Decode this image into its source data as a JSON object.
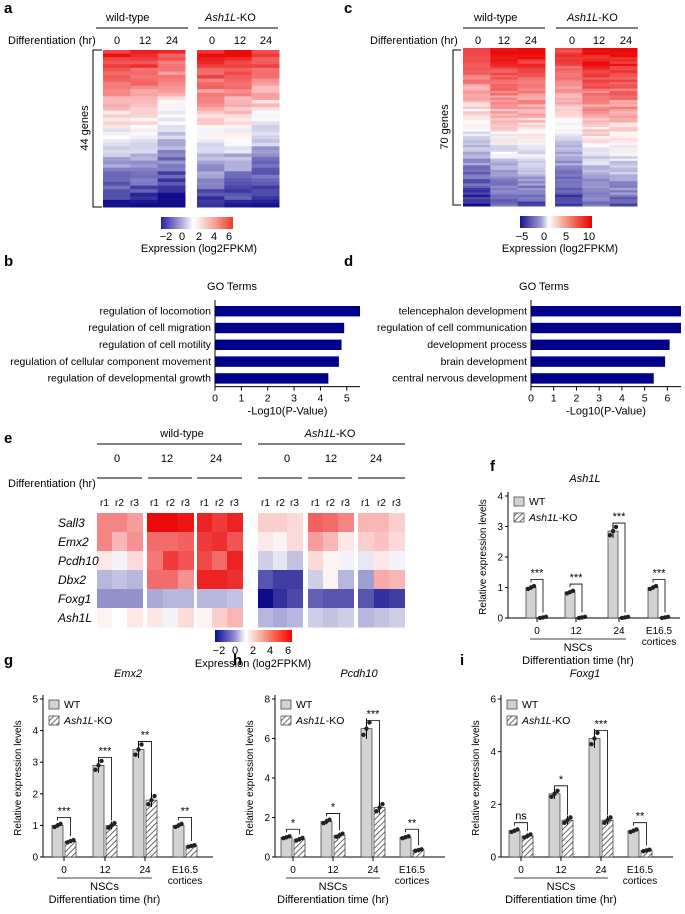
{
  "panel_labels": [
    "a",
    "b",
    "c",
    "d",
    "e",
    "f",
    "g",
    "h",
    "i"
  ],
  "common": {
    "wt": "wild-type",
    "ko_italic": "Ash1L",
    "ko_suffix": "-KO",
    "diff_label": "Differentiation (hr)",
    "tp": [
      "0",
      "12",
      "24"
    ],
    "reps": [
      "r1",
      "r2",
      "r3"
    ],
    "go_title": "GO Terms",
    "go_xlabel": "-Log10(P-Value)",
    "expr_label": "Expression (log2FPKM)",
    "rel_expr": "Relative expression levels",
    "legend_wt": "WT",
    "nscs": "NSCs",
    "diff_time": "Differentiation time (hr)",
    "e165": "E16.5",
    "cortices": "cortices",
    "bar_color": "#00008b"
  },
  "heatmap_a": {
    "genes_label": "44 genes",
    "scale_ticks": [
      "−2",
      "0",
      "2",
      "4",
      "6"
    ]
  },
  "heatmap_c": {
    "genes_label": "70 genes",
    "scale_ticks": [
      "−5",
      "0",
      "5",
      "10"
    ]
  },
  "heatmap_e": {
    "genes": [
      "Sall3",
      "Emx2",
      "Pcdh10",
      "Dbx2",
      "Foxg1",
      "Ash1L"
    ],
    "scale_ticks": [
      "−2",
      "0",
      "2",
      "4",
      "6"
    ]
  },
  "chart_data": [
    {
      "panel": "b",
      "type": "bar",
      "orientation": "horizontal",
      "title": "GO Terms",
      "xlabel": "-Log10(P-Value)",
      "categories": [
        "regulation of locomotion",
        "regulation of cell migration",
        "regulation of cell motility",
        "regulation of cellular component movement",
        "regulation of developmental growth"
      ],
      "values": [
        5.5,
        4.9,
        4.8,
        4.7,
        4.3
      ],
      "xlim": [
        0,
        5.5
      ],
      "xticks": [
        "0",
        "1",
        "2",
        "3",
        "4",
        "5"
      ]
    },
    {
      "panel": "d",
      "type": "bar",
      "orientation": "horizontal",
      "title": "GO Terms",
      "xlabel": "-Log10(P-Value)",
      "categories": [
        "telencephalon development",
        "regulation of cell communication",
        "development process",
        "brain development",
        "central nervous development"
      ],
      "values": [
        6.6,
        6.6,
        6.1,
        5.9,
        5.4
      ],
      "xlim": [
        0,
        6.6
      ],
      "xticks": [
        "0",
        "1",
        "2",
        "3",
        "4",
        "5",
        "6"
      ]
    },
    {
      "panel": "f",
      "type": "bar",
      "title": "Ash1L",
      "ylabel": "Relative expression levels",
      "ylim": [
        0,
        4
      ],
      "yticks": [
        "0",
        "1",
        "2",
        "3",
        "4"
      ],
      "categories": [
        "0",
        "12",
        "24",
        "E16.5 cortices"
      ],
      "series": [
        {
          "name": "WT",
          "values": [
            1.0,
            0.85,
            2.85,
            1.0
          ]
        },
        {
          "name": "Ash1L-KO",
          "values": [
            0.02,
            0.02,
            0.02,
            0.02
          ]
        }
      ],
      "significance": [
        "***",
        "***",
        "***",
        "***"
      ]
    },
    {
      "panel": "g",
      "type": "bar",
      "title": "Emx2",
      "ylabel": "Relative expression levels",
      "ylim": [
        0,
        5
      ],
      "yticks": [
        "0",
        "1",
        "2",
        "3",
        "4",
        "5"
      ],
      "categories": [
        "0",
        "12",
        "24",
        "E16.5 cortices"
      ],
      "series": [
        {
          "name": "WT",
          "values": [
            1.0,
            2.9,
            3.4,
            1.0
          ]
        },
        {
          "name": "Ash1L-KO",
          "values": [
            0.5,
            1.0,
            1.8,
            0.35
          ]
        }
      ],
      "significance": [
        "***",
        "***",
        "**",
        "**"
      ]
    },
    {
      "panel": "h",
      "type": "bar",
      "title": "Pcdh10",
      "ylabel": "Relative expression levels",
      "ylim": [
        0,
        8
      ],
      "yticks": [
        "0",
        "2",
        "4",
        "6",
        "8"
      ],
      "categories": [
        "0",
        "12",
        "24",
        "E16.5 cortices"
      ],
      "series": [
        {
          "name": "WT",
          "values": [
            1.0,
            1.8,
            6.5,
            1.0
          ]
        },
        {
          "name": "Ash1L-KO",
          "values": [
            0.9,
            1.1,
            2.5,
            0.35
          ]
        }
      ],
      "significance": [
        "*",
        "*",
        "***",
        "**"
      ]
    },
    {
      "panel": "i",
      "type": "bar",
      "title": "Foxg1",
      "ylabel": "Relative expression levels",
      "ylim": [
        0,
        6
      ],
      "yticks": [
        "0",
        "2",
        "4",
        "6"
      ],
      "categories": [
        "0",
        "12",
        "24",
        "E16.5 cortices"
      ],
      "series": [
        {
          "name": "WT",
          "values": [
            1.0,
            2.4,
            4.5,
            1.0
          ]
        },
        {
          "name": "Ash1L-KO",
          "values": [
            0.8,
            1.4,
            1.4,
            0.25
          ]
        }
      ],
      "significance": [
        "ns",
        "*",
        "***",
        "**"
      ]
    }
  ]
}
